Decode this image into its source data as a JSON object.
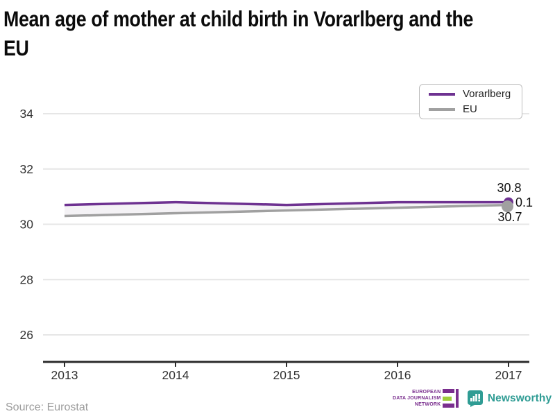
{
  "title": "Mean age of mother at child birth in Vorarlberg and the\nEU",
  "chart_data": {
    "type": "line",
    "x": [
      2013,
      2014,
      2015,
      2016,
      2017
    ],
    "series": [
      {
        "name": "Vorarlberg",
        "color": "#6e3291",
        "values": [
          30.7,
          30.8,
          30.7,
          30.8,
          30.8
        ]
      },
      {
        "name": "EU",
        "color": "#a0a0a0",
        "values": [
          30.3,
          30.4,
          30.5,
          30.6,
          30.7
        ]
      }
    ],
    "yticks": [
      34,
      32,
      30,
      28,
      26
    ],
    "ylim": [
      25,
      34.6
    ],
    "xlabel": "",
    "ylabel": "",
    "grid": "horizontal",
    "fill_between_series": true,
    "fill_color": "#f4f2f5",
    "legend_position": "top-right",
    "end_labels": {
      "top": "30.8",
      "diff": "0.1",
      "bottom": "30.7"
    },
    "axis_color": "#2b2b2b",
    "grid_color": "#e6e6e6",
    "tick_label_color": "#333333",
    "annotation_color": "#111111"
  },
  "legend": {
    "items": [
      {
        "label": "Vorarlberg",
        "color": "#6e3291"
      },
      {
        "label": "EU",
        "color": "#a0a0a0"
      }
    ]
  },
  "footer": {
    "source": "Source: Eurostat",
    "edjn": {
      "lines": "EUROPEAN\nDATA JOURNALISM\nNETWORK",
      "purple": "#7a2e8e",
      "green": "#9fce3a"
    },
    "newsworthy": {
      "label": "Newsworthy",
      "color": "#2f9c94"
    }
  }
}
